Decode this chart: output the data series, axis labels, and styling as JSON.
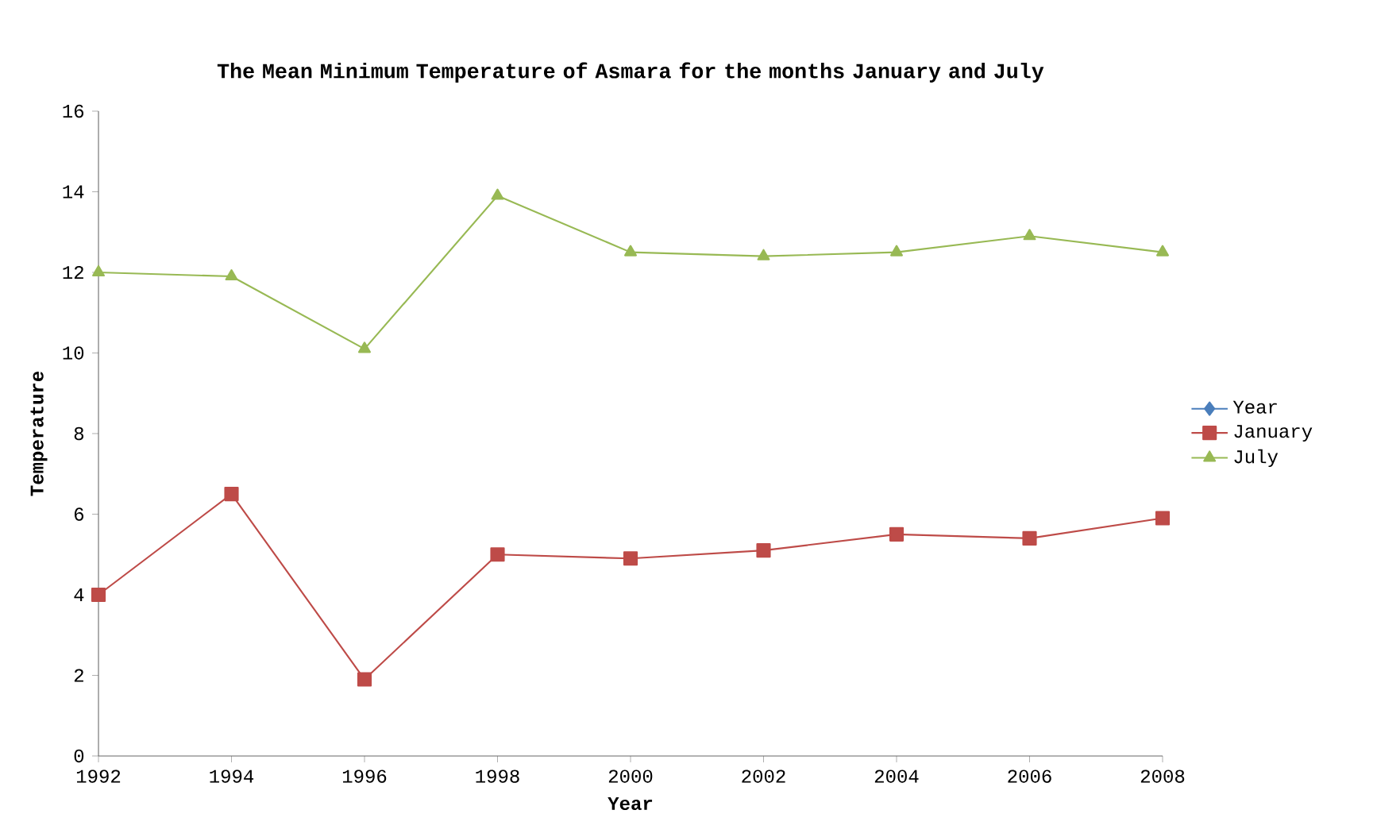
{
  "chart_data": {
    "type": "line",
    "title": "The Mean Minimum Temperature of Asmara for the months January and July",
    "xlabel": "Year",
    "ylabel": "Temperature",
    "x": [
      1992,
      1994,
      1996,
      1998,
      2000,
      2002,
      2004,
      2006,
      2008
    ],
    "xlim": [
      1992,
      2008
    ],
    "xticks": [
      1992,
      1994,
      1996,
      1998,
      2000,
      2002,
      2004,
      2006,
      2008
    ],
    "ylim": [
      0,
      16
    ],
    "yticks": [
      0,
      2,
      4,
      6,
      8,
      10,
      12,
      14,
      16
    ],
    "grid": false,
    "legend": "right",
    "series": [
      {
        "name": "Year",
        "color": "#4a7ebb",
        "marker": "diamond",
        "values": [
          null,
          null,
          null,
          null,
          null,
          null,
          null,
          null,
          null
        ]
      },
      {
        "name": "January",
        "color": "#be4b48",
        "marker": "square",
        "values": [
          4,
          6.5,
          1.9,
          5.0,
          4.9,
          5.1,
          5.5,
          5.4,
          5.9
        ]
      },
      {
        "name": "July",
        "color": "#98b954",
        "marker": "triangle",
        "values": [
          12.0,
          11.9,
          10.1,
          13.9,
          12.5,
          12.4,
          12.5,
          12.9,
          12.5
        ]
      }
    ]
  }
}
